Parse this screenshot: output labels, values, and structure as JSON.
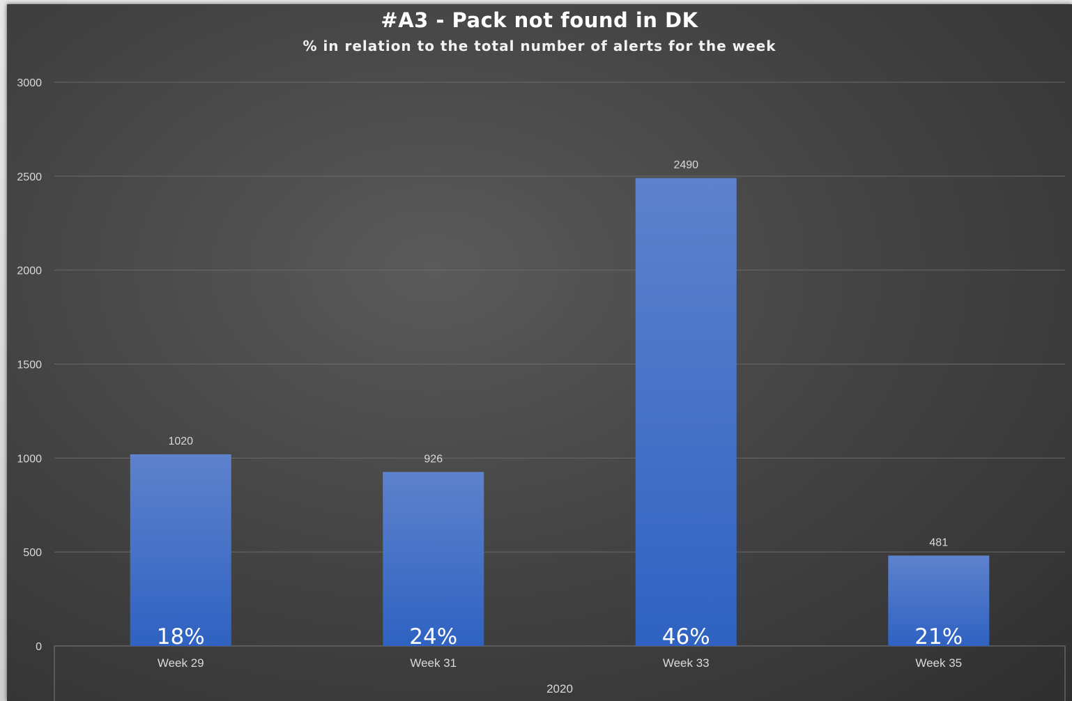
{
  "chart_data": {
    "type": "bar",
    "title": "#A3 - Pack not found in DK",
    "subtitle": "% in relation to the total number of alerts for the week",
    "categories": [
      "Week 29",
      "Week 31",
      "Week 33",
      "Week 35"
    ],
    "category_group": "2020",
    "values": [
      1020,
      926,
      2490,
      481
    ],
    "percent_labels": [
      "18%",
      "24%",
      "46%",
      "21%"
    ],
    "ylim": [
      0,
      3000
    ],
    "yticks": [
      0,
      500,
      1000,
      1500,
      2000,
      2500,
      3000
    ],
    "grid": true,
    "legend": "none",
    "bar_color": "#4472c4"
  }
}
